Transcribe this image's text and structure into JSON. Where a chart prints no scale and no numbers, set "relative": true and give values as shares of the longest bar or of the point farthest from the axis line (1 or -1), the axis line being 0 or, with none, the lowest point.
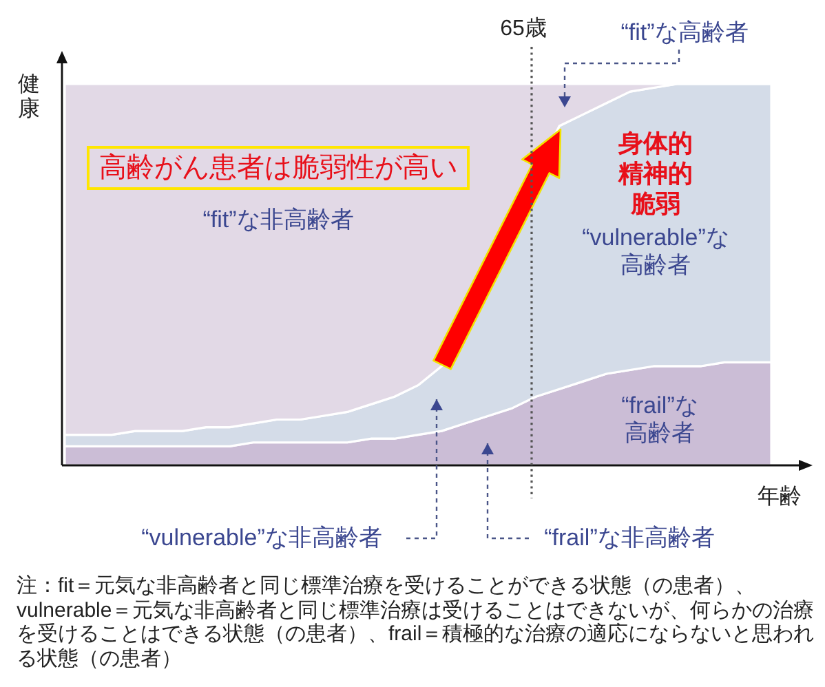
{
  "chart_data": {
    "type": "area",
    "relative": true,
    "stacked": true,
    "categories": [
      null,
      null,
      null,
      null,
      null,
      null,
      null,
      null,
      null,
      null,
      null,
      null,
      null,
      null,
      null,
      null,
      null,
      null,
      null,
      null,
      null,
      null,
      null,
      null,
      null,
      null,
      null,
      null,
      null,
      null,
      null
    ],
    "series": [
      {
        "color": "#cbbdd6",
        "values": [
          0.05,
          0.05,
          0.05,
          0.05,
          0.05,
          0.05,
          0.05,
          0.05,
          0.06,
          0.06,
          0.06,
          0.06,
          0.06,
          0.07,
          0.07,
          0.08,
          0.09,
          0.11,
          0.13,
          0.15,
          0.18,
          0.2,
          0.22,
          0.24,
          0.25,
          0.26,
          0.26,
          0.26,
          0.27,
          0.27,
          0.27
        ]
      },
      {
        "color": "#d4dce8",
        "values": [
          0.03,
          0.03,
          0.03,
          0.04,
          0.04,
          0.04,
          0.05,
          0.05,
          0.05,
          0.06,
          0.06,
          0.07,
          0.08,
          0.09,
          0.11,
          0.13,
          0.17,
          null,
          null,
          null,
          null,
          0.69,
          0.7,
          0.71,
          0.73,
          0.73,
          0.74,
          0.74,
          0.73,
          0.73,
          0.73
        ]
      },
      {
        "color": "#e2d9e6",
        "values": [
          0.92,
          0.92,
          0.92,
          0.91,
          0.91,
          0.91,
          0.9,
          0.9,
          0.89,
          0.88,
          0.88,
          0.87,
          0.86,
          0.84,
          0.82,
          0.79,
          0.74,
          null,
          null,
          null,
          null,
          0.11,
          0.08,
          0.05,
          0.02,
          0.01,
          0,
          0,
          0,
          0,
          0
        ]
      }
    ],
    "xlabel": "年齢",
    "ylabel": "健康",
    "annotations": [
      "65歳",
      "“fit”な高齢者",
      "高齢がん患者は脆弱性が高い",
      "身体的精神的脆弱",
      "“fit”な非高齢者",
      "“vulnerable”な高齢者",
      "“frail”な高齢者",
      "“vulnerable”な非高齢者",
      "“frail”な非高齢者",
      "注：fit＝元気な非高齢者と同じ標準治療を受けることができる状態（の患者）、vulnerable＝元気な非高齢者と同じ標準治療は受けることはできないが、何らかの治療を受けることはできる状態（の患者）、frail＝積極的な治療の適応にならないと思われる状態（の患者）"
    ]
  }
}
